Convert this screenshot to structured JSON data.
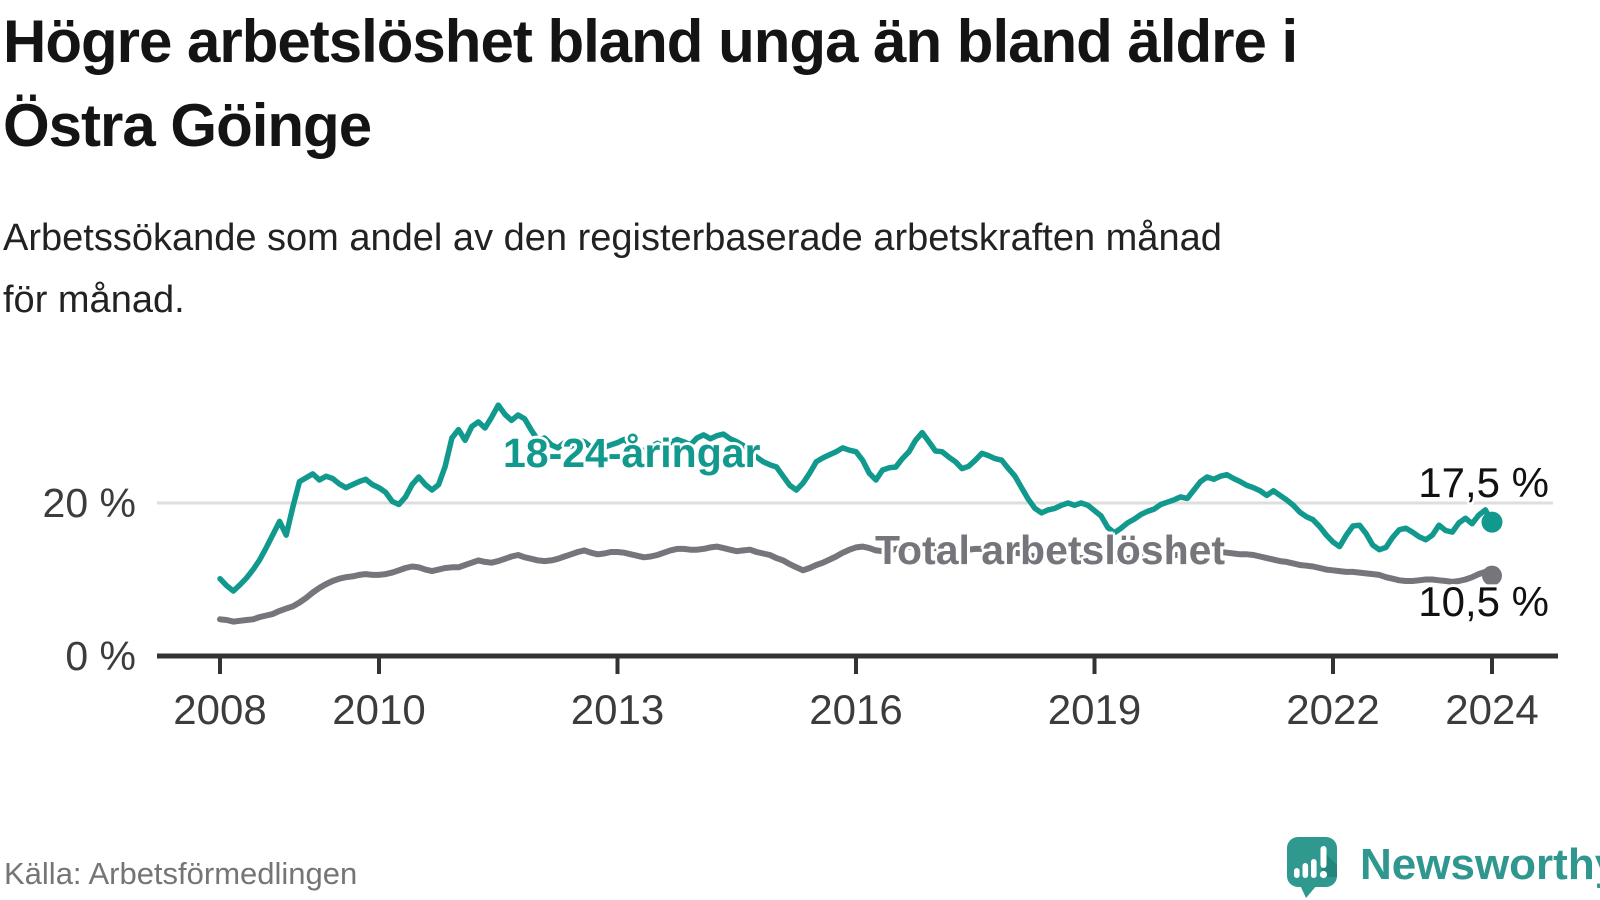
{
  "header": {
    "title_line1": "Högre arbetslöshet bland unga än bland äldre i",
    "title_line2": "Östra Göinge",
    "subtitle_line1": "Arbetssökande som andel av den registerbaserade arbetskraften månad",
    "subtitle_line2": "för månad."
  },
  "chart_data": {
    "type": "line",
    "title": "Högre arbetslöshet bland unga än bland äldre i Östra Göinge",
    "subtitle": "Arbetssökande som andel av den registerbaserade arbetskraften månad för månad.",
    "x_unit": "month",
    "x_start_year": 2008,
    "x_end_year": 2024,
    "x_ticks": [
      2008,
      2010,
      2013,
      2016,
      2019,
      2022,
      2024
    ],
    "x_tick_labels": [
      "2008",
      "2010",
      "2013",
      "2016",
      "2019",
      "2022",
      "2024"
    ],
    "y_ticks": [
      0,
      20
    ],
    "y_tick_labels": [
      "0 %",
      "20 %"
    ],
    "ylim": [
      0,
      36
    ],
    "grid": "horizontal line at 20% only",
    "legend_position": "inline labels on lines",
    "axis_color": "#333333",
    "grid_color": "#dedede",
    "series": [
      {
        "name": "Total arbetslöshet",
        "color": "#76757b",
        "end_value": 10.5,
        "end_label": "10,5 %",
        "values": [
          4.8,
          4.7,
          4.5,
          4.6,
          4.7,
          4.8,
          5.1,
          5.3,
          5.5,
          5.9,
          6.2,
          6.5,
          7.0,
          7.6,
          8.3,
          8.9,
          9.4,
          9.8,
          10.1,
          10.3,
          10.4,
          10.6,
          10.7,
          10.6,
          10.6,
          10.7,
          10.9,
          11.2,
          11.5,
          11.7,
          11.6,
          11.3,
          11.1,
          11.3,
          11.5,
          11.6,
          11.6,
          11.9,
          12.2,
          12.5,
          12.3,
          12.2,
          12.4,
          12.7,
          13.0,
          13.2,
          12.9,
          12.7,
          12.5,
          12.4,
          12.5,
          12.7,
          13.0,
          13.3,
          13.6,
          13.8,
          13.5,
          13.3,
          13.4,
          13.6,
          13.6,
          13.5,
          13.3,
          13.1,
          12.9,
          13.0,
          13.2,
          13.5,
          13.8,
          14.0,
          14.0,
          13.9,
          13.9,
          14.0,
          14.2,
          14.3,
          14.1,
          13.9,
          13.7,
          13.8,
          13.9,
          13.6,
          13.4,
          13.2,
          12.8,
          12.5,
          12.0,
          11.6,
          11.2,
          11.5,
          11.9,
          12.2,
          12.6,
          13.0,
          13.5,
          13.9,
          14.2,
          14.3,
          14.1,
          13.8,
          13.7,
          13.8,
          14.0,
          14.2,
          14.3,
          14.4,
          14.3,
          14.2,
          14.1,
          14.0,
          13.9,
          13.8,
          13.8,
          13.9,
          14.0,
          14.0,
          13.9,
          13.8,
          13.7,
          13.6,
          13.5,
          13.4,
          13.2,
          13.0,
          12.9,
          12.9,
          13.0,
          13.0,
          12.9,
          12.9,
          12.8,
          12.8,
          12.9,
          12.9,
          12.8,
          12.7,
          12.7,
          12.8,
          12.9,
          13.0,
          13.0,
          13.0,
          13.1,
          13.1,
          13.2,
          13.2,
          13.3,
          13.5,
          13.6,
          13.7,
          13.7,
          13.6,
          13.5,
          13.4,
          13.3,
          13.3,
          13.2,
          13.0,
          12.8,
          12.6,
          12.4,
          12.3,
          12.1,
          11.9,
          11.8,
          11.7,
          11.5,
          11.3,
          11.2,
          11.1,
          11.0,
          11.0,
          10.9,
          10.8,
          10.7,
          10.6,
          10.3,
          10.1,
          9.9,
          9.8,
          9.8,
          9.9,
          10.0,
          10.0,
          9.9,
          9.8,
          9.7,
          9.8,
          10.0,
          10.3,
          10.7,
          11.0,
          10.5
        ]
      },
      {
        "name": "18-24-åringar",
        "color": "#11998e",
        "end_value": 17.5,
        "end_label": "17,5 %",
        "values": [
          10.1,
          9.2,
          8.5,
          9.3,
          10.2,
          11.3,
          12.6,
          14.2,
          15.9,
          17.6,
          15.8,
          19.5,
          22.8,
          23.3,
          23.8,
          23.0,
          23.5,
          23.2,
          22.5,
          22.0,
          22.4,
          22.8,
          23.1,
          22.4,
          22.0,
          21.4,
          20.2,
          19.8,
          20.8,
          22.4,
          23.4,
          22.4,
          21.7,
          22.4,
          24.8,
          28.5,
          29.6,
          28.2,
          30.0,
          30.6,
          29.8,
          31.2,
          32.8,
          31.6,
          30.8,
          31.5,
          31.0,
          29.5,
          28.2,
          28.5,
          27.6,
          27.2,
          27.9,
          27.4,
          28.3,
          28.0,
          27.3,
          27.0,
          27.3,
          27.6,
          27.9,
          28.3,
          27.7,
          27.2,
          26.8,
          27.3,
          27.8,
          27.4,
          27.9,
          28.3,
          28.0,
          27.6,
          28.5,
          28.9,
          28.4,
          28.8,
          29.0,
          28.4,
          28.0,
          27.5,
          26.8,
          26.0,
          25.4,
          25.0,
          24.7,
          23.5,
          22.3,
          21.7,
          22.6,
          23.9,
          25.4,
          25.9,
          26.3,
          26.7,
          27.2,
          26.9,
          26.7,
          25.6,
          23.9,
          23.0,
          24.3,
          24.6,
          24.7,
          25.8,
          26.7,
          28.2,
          29.2,
          28.0,
          26.8,
          26.7,
          26.0,
          25.4,
          24.5,
          24.8,
          25.6,
          26.5,
          26.2,
          25.8,
          25.6,
          24.5,
          23.5,
          22.0,
          20.5,
          19.3,
          18.7,
          19.1,
          19.3,
          19.7,
          20.0,
          19.7,
          20.0,
          19.7,
          19.0,
          18.3,
          16.8,
          16.1,
          16.7,
          17.4,
          17.9,
          18.5,
          18.9,
          19.2,
          19.8,
          20.1,
          20.4,
          20.8,
          20.6,
          21.7,
          22.8,
          23.4,
          23.1,
          23.5,
          23.7,
          23.2,
          22.8,
          22.3,
          22.0,
          21.6,
          21.0,
          21.6,
          21.0,
          20.4,
          19.7,
          18.8,
          18.2,
          17.8,
          16.9,
          15.8,
          14.9,
          14.3,
          15.8,
          17.0,
          17.1,
          16.0,
          14.5,
          13.9,
          14.2,
          15.5,
          16.5,
          16.7,
          16.2,
          15.6,
          15.2,
          15.8,
          17.1,
          16.4,
          16.2,
          17.4,
          18.0,
          17.3,
          18.4,
          19.1,
          17.5
        ]
      }
    ]
  },
  "annotations": {
    "youth_line_label": "18-24-åringar",
    "total_line_label": "Total arbetslöshet",
    "youth_end_label": "17,5 %",
    "total_end_label": "10,5 %"
  },
  "footer": {
    "source": "Källa: Arbetsförmedlingen",
    "brand_name": "Newsworthy",
    "brand_color": "#2f978f"
  }
}
